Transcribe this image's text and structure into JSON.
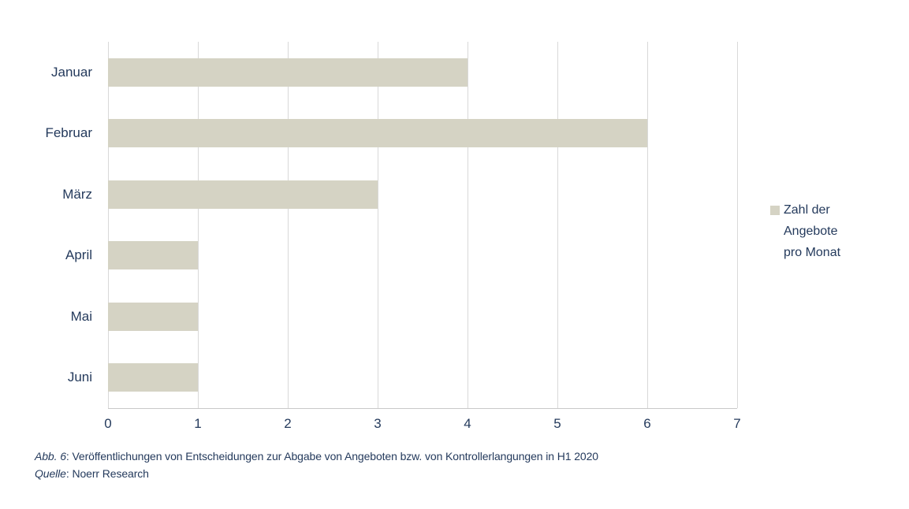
{
  "figure": {
    "background": "#FFFFFF",
    "text_color": "#243A5C"
  },
  "chart_data": {
    "type": "bar",
    "orientation": "horizontal",
    "title": "",
    "categories": [
      "Januar",
      "Februar",
      "März",
      "April",
      "Mai",
      "Juni"
    ],
    "values": [
      4,
      6,
      3,
      1,
      1,
      1
    ],
    "series": [
      {
        "name": "Zahl der Angebote pro Monat",
        "values": [
          4,
          6,
          3,
          1,
          1,
          1
        ]
      }
    ],
    "legend_label": "Zahl der Angebote pro Monat",
    "legend_position": "right",
    "xlabel": "",
    "ylabel": "",
    "xlim": [
      0,
      7
    ],
    "xticks": [
      0,
      1,
      2,
      3,
      4,
      5,
      6,
      7
    ],
    "grid": "vertical-gridlines",
    "bar_color": "#D5D3C4",
    "gridline_color": "#D9D9D9",
    "axis_line_color": "#C9C9C9"
  },
  "caption": {
    "line1_italic": "Abb. 6",
    "line1_rest": ": Veröffentlichungen von Entscheidungen zur Abgabe von Angeboten bzw. von Kontrollerlangungen in H1 2020",
    "line2_italic": "Quelle",
    "line2_rest": ": Noerr Research"
  }
}
